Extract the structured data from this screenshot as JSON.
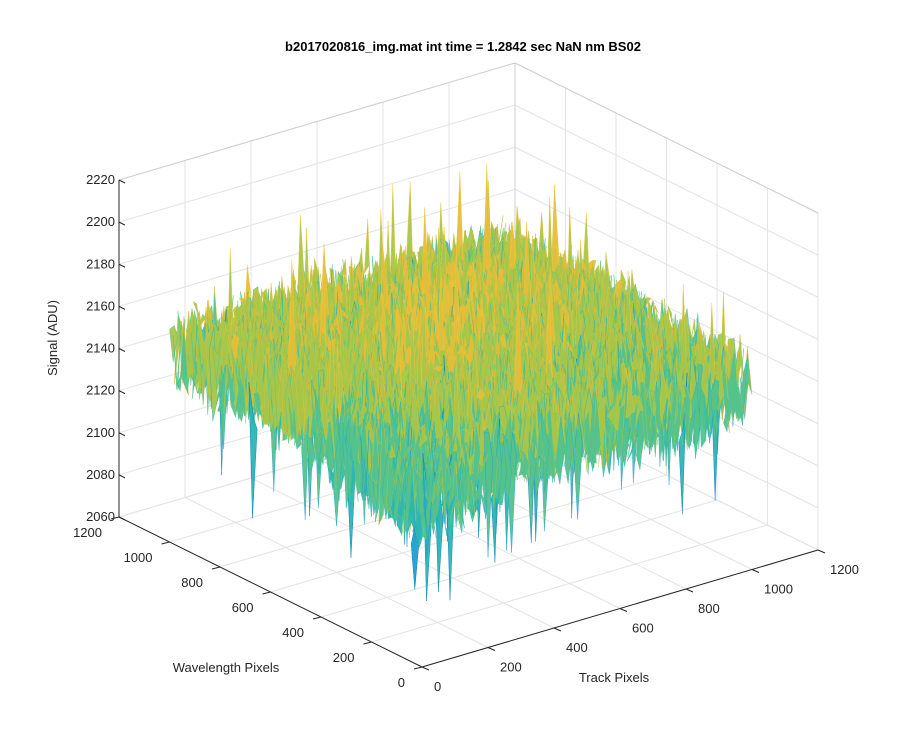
{
  "chart_data": {
    "type": "surface",
    "title": "b2017020816_img.mat int time = 1.2842 sec  NaN nm BS02",
    "xlabel": "Track Pixels",
    "ylabel": "Wavelength Pixels",
    "zlabel": "Signal (ADU)",
    "xlim": [
      0,
      1200
    ],
    "ylim": [
      0,
      1200
    ],
    "zlim": [
      2060,
      2220
    ],
    "x_ticks": [
      0,
      200,
      400,
      600,
      800,
      1000,
      1200
    ],
    "y_ticks": [
      0,
      200,
      400,
      600,
      800,
      1000,
      1200
    ],
    "z_ticks": [
      2060,
      2080,
      2100,
      2120,
      2140,
      2160,
      2180,
      2200,
      2220
    ],
    "x_tick_labels": [
      "0",
      "200",
      "400",
      "600",
      "800",
      "1000",
      "1200"
    ],
    "y_tick_labels": [
      "0",
      "200",
      "400",
      "600",
      "800",
      "1000",
      "1200"
    ],
    "z_tick_labels": [
      "2060",
      "2080",
      "2100",
      "2120",
      "2140",
      "2160",
      "2180",
      "2200",
      "2220"
    ],
    "grid": true,
    "colormap": [
      "#0072BD",
      "#1E9ECF",
      "#2BB5B4",
      "#55C28C",
      "#A6C64A",
      "#E2BF3A",
      "#F5C53A"
    ],
    "surface_summary": {
      "signal_range": [
        2068,
        2215
      ],
      "mean_signal": 2145,
      "description_peaks_high": "central ridge",
      "extent_pixels": 1000
    }
  }
}
